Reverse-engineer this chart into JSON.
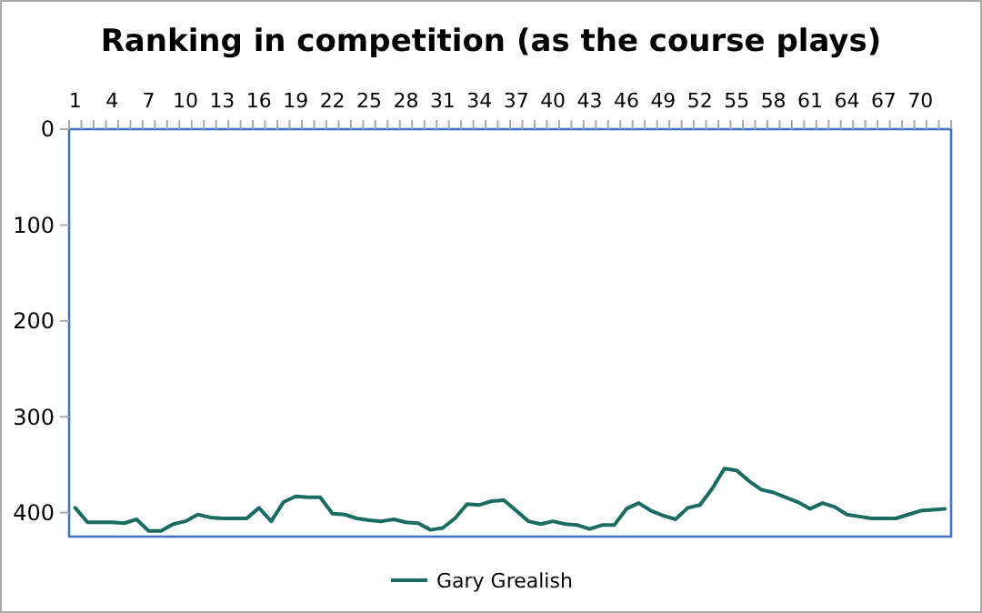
{
  "chart_data": {
    "type": "line",
    "title": "Ranking in competition (as the course plays)",
    "categories": [
      "1",
      null,
      null,
      "4",
      null,
      null,
      "7",
      null,
      null,
      "10",
      null,
      null,
      "13",
      null,
      null,
      "16",
      null,
      null,
      "19",
      null,
      null,
      "22",
      null,
      null,
      "25",
      null,
      null,
      "28",
      null,
      null,
      "31",
      null,
      null,
      "34",
      null,
      null,
      "37",
      null,
      null,
      "40",
      null,
      null,
      "43",
      null,
      null,
      "46",
      null,
      null,
      "49",
      null,
      null,
      "52",
      null,
      null,
      "55",
      null,
      null,
      "58",
      null,
      null,
      "61",
      null,
      null,
      "64",
      null,
      null,
      "67",
      null,
      null,
      "70",
      null,
      null
    ],
    "series": [
      {
        "name": "Gary Grealish",
        "color": "#1a6b61",
        "values": [
          395,
          410,
          410,
          410,
          411,
          407,
          419,
          419,
          412,
          409,
          402,
          405,
          406,
          406,
          406,
          395,
          409,
          389,
          383,
          384,
          384,
          401,
          402,
          406,
          408,
          409,
          407,
          410,
          411,
          418,
          416,
          406,
          391,
          392,
          388,
          387,
          398,
          409,
          412,
          409,
          412,
          413,
          417,
          413,
          413,
          396,
          390,
          398,
          403,
          407,
          395,
          392,
          375,
          354,
          356,
          367,
          376,
          379,
          384,
          389,
          396,
          390,
          394,
          402,
          404,
          406,
          406,
          406,
          402,
          398,
          397,
          396
        ]
      }
    ],
    "ylim": [
      425,
      0
    ],
    "yticks": [
      0,
      100,
      200,
      300,
      400
    ],
    "grid": false,
    "legend": "bottom",
    "marker": "none",
    "line_style": "solid"
  }
}
